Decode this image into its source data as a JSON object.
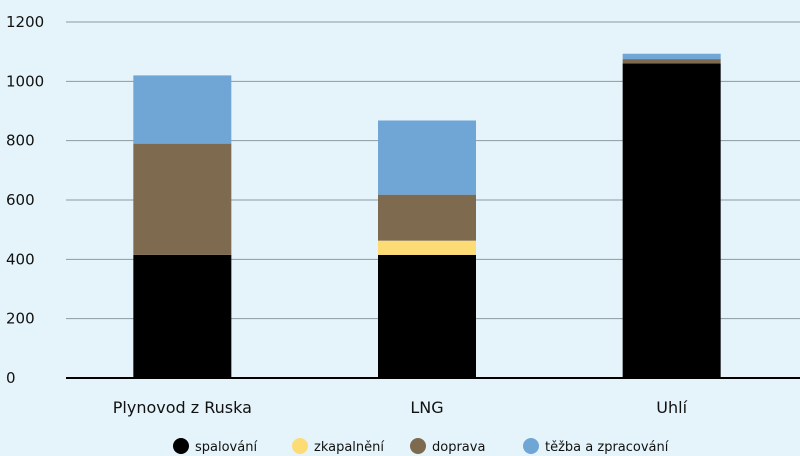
{
  "chart_data": {
    "type": "bar",
    "stacked": true,
    "categories": [
      "Plynovod z Ruska",
      "LNG",
      "Uhlí"
    ],
    "series": [
      {
        "name": "spalování",
        "color": "#000000",
        "values": [
          415,
          415,
          1060
        ]
      },
      {
        "name": "zkapalnění",
        "color": "#fddc75",
        "values": [
          0,
          48,
          0
        ]
      },
      {
        "name": "doprava",
        "color": "#7d6a4f",
        "values": [
          375,
          155,
          15
        ]
      },
      {
        "name": "těžba a zpracování",
        "color": "#6fa6d5",
        "values": [
          230,
          250,
          18
        ]
      }
    ],
    "yticks": [
      "0",
      "200",
      "400",
      "600",
      "800",
      "1000",
      "1200"
    ],
    "ylim": [
      0,
      1200
    ],
    "grid": true,
    "legend_position": "bottom"
  }
}
